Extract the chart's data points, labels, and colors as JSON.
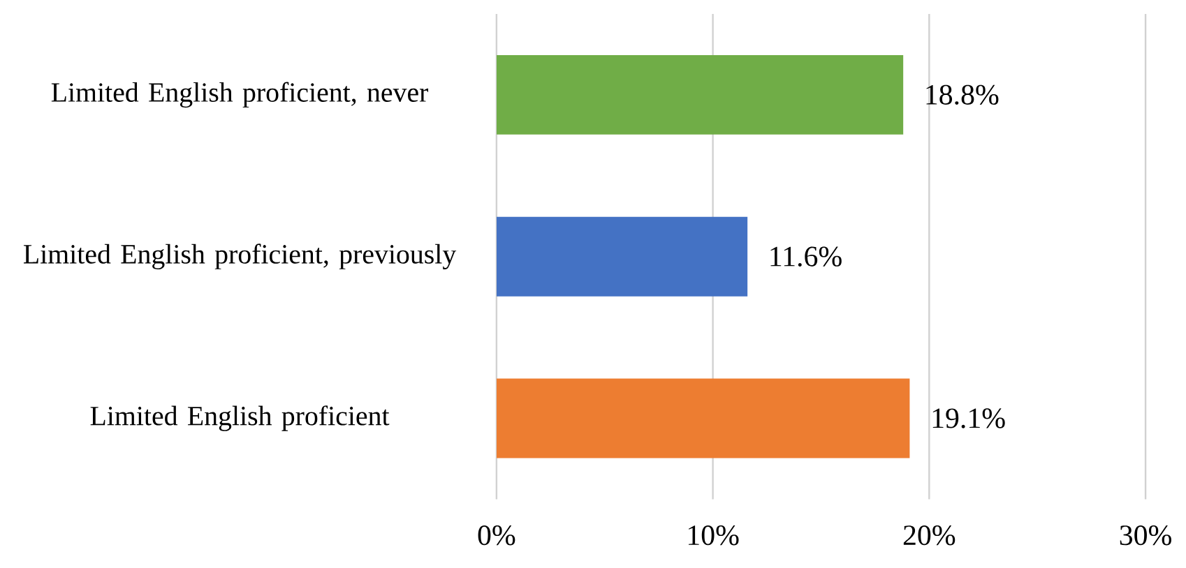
{
  "chart_data": {
    "type": "bar",
    "orientation": "horizontal",
    "categories": [
      "Limited English proficient, never",
      "Limited English proficient, previously",
      "Limited English proficient"
    ],
    "values": [
      18.8,
      11.6,
      19.1
    ],
    "colors": [
      "#70ad47",
      "#4472c4",
      "#ed7d31"
    ],
    "value_labels": [
      "18.8%",
      "11.6%",
      "19.1%"
    ],
    "xlim": [
      0,
      30
    ],
    "xticks": [
      {
        "value": 0,
        "label": "0%"
      },
      {
        "value": 10,
        "label": "10%"
      },
      {
        "value": 20,
        "label": "20%"
      },
      {
        "value": 30,
        "label": "30%"
      }
    ],
    "grid": "x"
  }
}
